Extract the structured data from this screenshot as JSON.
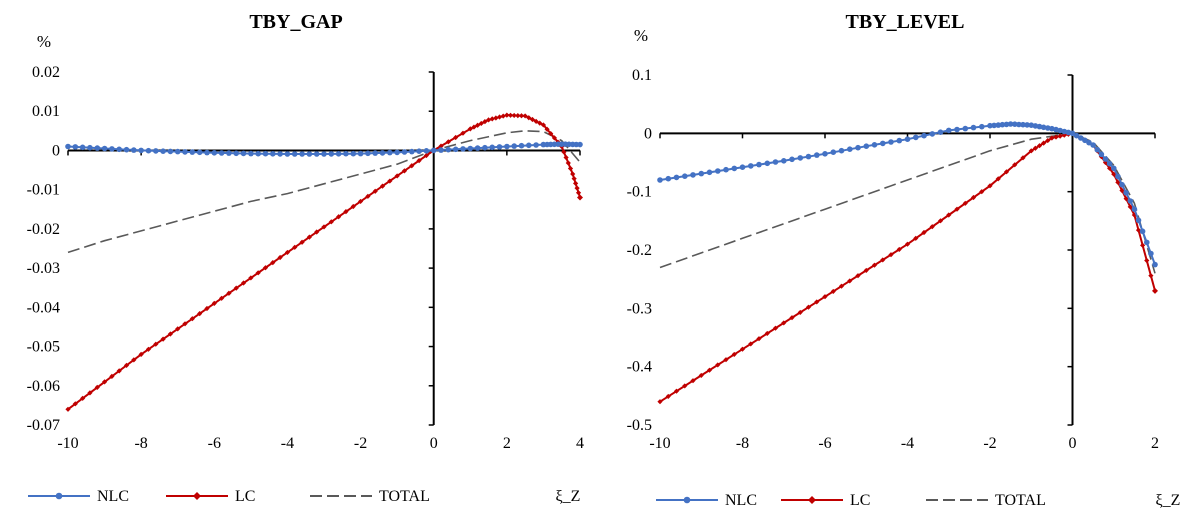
{
  "colors": {
    "NLC": "#4472C4",
    "LC": "#C00000",
    "TOTAL": "#595959",
    "axis": "#000000"
  },
  "chart_data": [
    {
      "type": "line",
      "title": "TBY_GAP",
      "ylabel": "%",
      "xlabel": "ξ_Z",
      "xlim": [
        -10,
        4
      ],
      "ylim": [
        -0.07,
        0.02
      ],
      "xticks": [
        -10,
        -8,
        -6,
        -4,
        -2,
        0,
        2,
        4
      ],
      "yticks": [
        0.02,
        0.01,
        0,
        -0.01,
        -0.02,
        -0.03,
        -0.04,
        -0.05,
        -0.06,
        -0.07
      ],
      "xtick_labels": [
        "-10",
        "-8",
        "-6",
        "-4",
        "-2",
        "0",
        "2",
        "4"
      ],
      "ytick_labels": [
        "0.02",
        "0.01",
        "0",
        "-0.01",
        "-0.02",
        "-0.03",
        "-0.04",
        "-0.05",
        "-0.06",
        "-0.07"
      ],
      "legend": [
        "NLC",
        "LC",
        "TOTAL"
      ],
      "legend_position": "bottom",
      "series": [
        {
          "name": "NLC",
          "style": "solid-circle",
          "x": [
            -10,
            -9,
            -8,
            -7,
            -6,
            -5,
            -4,
            -3,
            -2,
            -1,
            0,
            1,
            2,
            3,
            3.5,
            4
          ],
          "y": [
            0.001,
            0.0005,
            0,
            -0.0003,
            -0.0006,
            -0.0008,
            -0.0009,
            -0.0009,
            -0.0008,
            -0.0005,
            0,
            0.0005,
            0.001,
            0.0015,
            0.0016,
            0.0015
          ]
        },
        {
          "name": "LC",
          "style": "solid-diamond",
          "x": [
            -10,
            -9,
            -8,
            -7,
            -6,
            -5,
            -4,
            -3,
            -2,
            -1,
            0,
            1,
            1.5,
            2,
            2.5,
            3,
            3.5,
            3.8,
            4
          ],
          "y": [
            -0.066,
            -0.059,
            -0.052,
            -0.0455,
            -0.039,
            -0.0325,
            -0.026,
            -0.0195,
            -0.013,
            -0.0065,
            0,
            0.0055,
            0.0078,
            0.009,
            0.0088,
            0.0065,
            0.001,
            -0.006,
            -0.012
          ]
        },
        {
          "name": "TOTAL",
          "style": "dashed",
          "x": [
            -10,
            -9,
            -8,
            -7,
            -6,
            -5,
            -4,
            -3,
            -2,
            -1,
            0,
            1,
            2,
            2.5,
            3,
            3.5,
            4
          ],
          "y": [
            -0.026,
            -0.023,
            -0.0205,
            -0.018,
            -0.0155,
            -0.013,
            -0.011,
            -0.0085,
            -0.006,
            -0.0035,
            0,
            0.0025,
            0.0045,
            0.005,
            0.0048,
            0.0025,
            -0.003
          ]
        }
      ]
    },
    {
      "type": "line",
      "title": "TBY_LEVEL",
      "ylabel": "%",
      "xlabel": "ξ_Z",
      "xlim": [
        -10,
        2
      ],
      "ylim": [
        -0.5,
        0.1
      ],
      "xticks": [
        -10,
        -8,
        -6,
        -4,
        -2,
        0,
        2
      ],
      "yticks": [
        0.1,
        0,
        -0.1,
        -0.2,
        -0.3,
        -0.4,
        -0.5
      ],
      "xtick_labels": [
        "-10",
        "-8",
        "-6",
        "-4",
        "-2",
        "0",
        "2"
      ],
      "ytick_labels": [
        "0.1",
        "0",
        "-0.1",
        "-0.2",
        "-0.3",
        "-0.4",
        "-0.5"
      ],
      "legend": [
        "NLC",
        "LC",
        "TOTAL"
      ],
      "legend_position": "bottom",
      "series": [
        {
          "name": "NLC",
          "style": "solid-circle",
          "x": [
            -10,
            -9,
            -8,
            -7,
            -6,
            -5,
            -4,
            -3,
            -2,
            -1.5,
            -1,
            -0.5,
            0,
            0.5,
            1,
            1.5,
            2
          ],
          "y": [
            -0.08,
            -0.069,
            -0.058,
            -0.047,
            -0.035,
            -0.022,
            -0.01,
            0.005,
            0.013,
            0.016,
            0.014,
            0.008,
            0,
            -0.02,
            -0.06,
            -0.13,
            -0.225
          ]
        },
        {
          "name": "LC",
          "style": "solid-diamond",
          "x": [
            -10,
            -9,
            -8,
            -7,
            -6,
            -5,
            -4,
            -3,
            -2,
            -1,
            -0.5,
            0,
            0.5,
            1,
            1.5,
            2
          ],
          "y": [
            -0.46,
            -0.415,
            -0.37,
            -0.325,
            -0.28,
            -0.235,
            -0.19,
            -0.14,
            -0.09,
            -0.03,
            -0.008,
            0,
            -0.02,
            -0.07,
            -0.14,
            -0.27
          ]
        },
        {
          "name": "TOTAL",
          "style": "dashed",
          "x": [
            -10,
            -9,
            -8,
            -7,
            -6,
            -5,
            -4,
            -3,
            -2,
            -1,
            0,
            0.5,
            1,
            1.5,
            2
          ],
          "y": [
            -0.23,
            -0.205,
            -0.18,
            -0.155,
            -0.13,
            -0.105,
            -0.08,
            -0.055,
            -0.03,
            -0.01,
            0,
            -0.015,
            -0.055,
            -0.12,
            -0.24
          ]
        }
      ]
    }
  ]
}
